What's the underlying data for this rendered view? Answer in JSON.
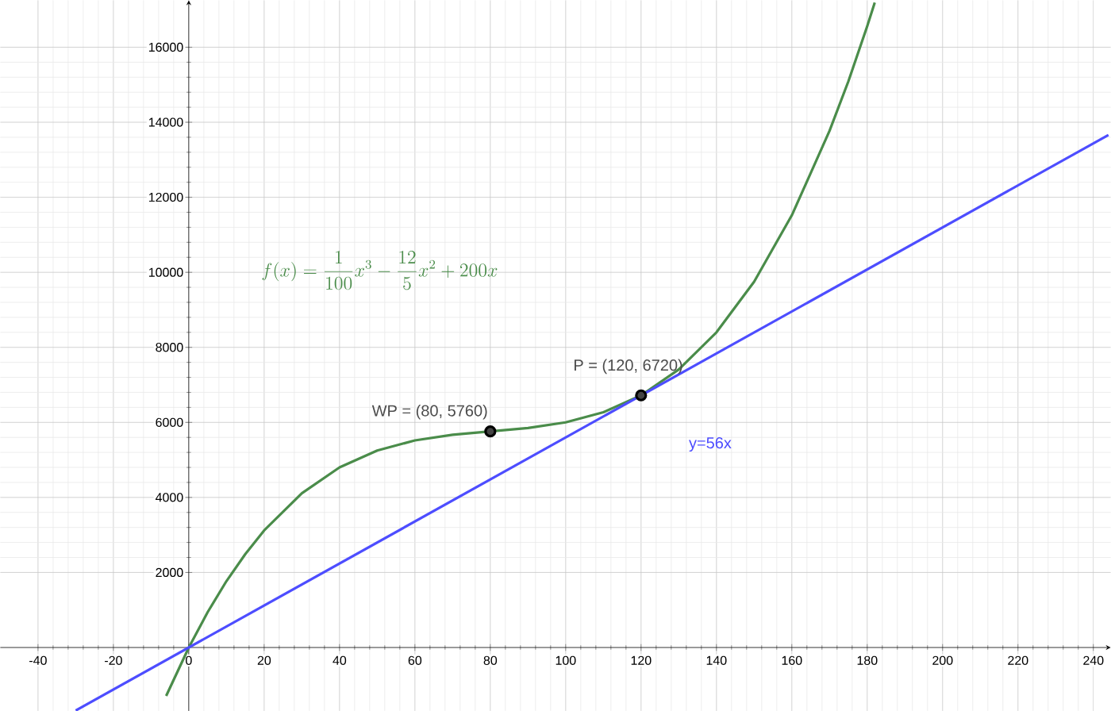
{
  "chart_data": {
    "type": "line",
    "xlim": [
      -50,
      244.6
    ],
    "ylim": [
      -1690,
      17250
    ],
    "xticks": [
      -40,
      -20,
      0,
      20,
      40,
      60,
      80,
      100,
      120,
      140,
      160,
      180,
      200,
      220,
      240
    ],
    "yticks": [
      2000,
      4000,
      6000,
      8000,
      10000,
      12000,
      14000,
      16000
    ],
    "grid": true,
    "series": [
      {
        "type": "line",
        "color": "#4a8c4a",
        "marker": "none",
        "x": [
          -6,
          0,
          5,
          10,
          15,
          20,
          30,
          40,
          50,
          60,
          70,
          80,
          90,
          100,
          110,
          120,
          130,
          140,
          150,
          160,
          170,
          175,
          180,
          182
        ],
        "values": [
          -1290,
          0,
          940,
          1770,
          2490,
          3120,
          4110,
          4800,
          5250,
          5520,
          5670,
          5760,
          5850,
          6000,
          6270,
          6720,
          7410,
          8400,
          9750,
          11520,
          13770,
          15090,
          16560,
          17190
        ]
      },
      {
        "type": "line",
        "color": "#4d4dff",
        "marker": "none",
        "x": [
          -30,
          244
        ],
        "values": [
          -1680,
          13660
        ]
      },
      {
        "type": "scatter",
        "color": "#444444",
        "marker": "circle",
        "x": [
          80,
          120
        ],
        "values": [
          5760,
          6720
        ]
      }
    ],
    "annotations": [
      "f(x) = \\frac{1}{100}x^{3} - \\frac{12}{5}x^{2} + 200x",
      {
        "text": "WP = (80, 5760)",
        "x": 80,
        "y": 5760
      },
      {
        "text": "P = (120, 6720)",
        "x": 120,
        "y": 6720
      },
      "y=56x"
    ]
  }
}
